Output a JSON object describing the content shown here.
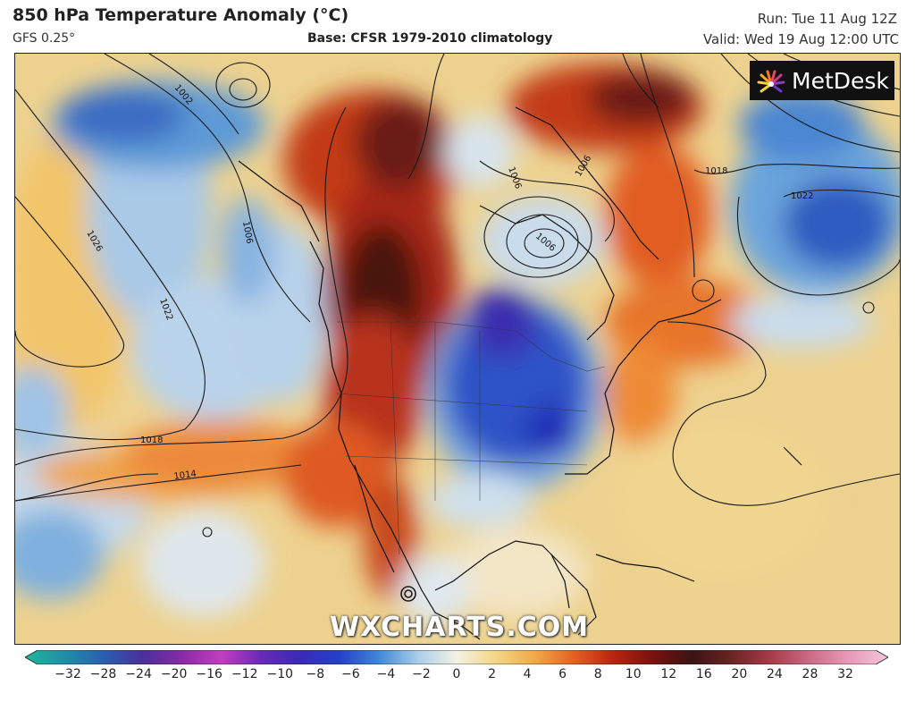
{
  "header": {
    "title": "850 hPa Temperature Anomaly (°C)",
    "model": "GFS 0.25°",
    "base": "Base: CFSR 1979-2010 climatology",
    "run": "Run: Tue 11 Aug 12Z",
    "valid": "Valid: Wed 19 Aug 12:00 UTC"
  },
  "logo": {
    "text": "MetDesk",
    "icon": "metdesk-sunburst-icon"
  },
  "watermark": "WXCHARTS.COM",
  "isobars": [
    "1002",
    "1006",
    "1018",
    "1022",
    "1026",
    "1022",
    "1018",
    "1014",
    "1006",
    "1006",
    "1006"
  ],
  "colorbar": {
    "ticks": [
      "−32",
      "−28",
      "−24",
      "−20",
      "−16",
      "−12",
      "−10",
      "−8",
      "−6",
      "−4",
      "−2",
      "0",
      "2",
      "4",
      "6",
      "8",
      "10",
      "12",
      "16",
      "20",
      "24",
      "28",
      "32"
    ],
    "colors": [
      "#1fb89a",
      "#1f8fa8",
      "#2a5fb0",
      "#4a2f9a",
      "#8a2aa8",
      "#c23ec0",
      "#6a2ab8",
      "#3a2ab8",
      "#2440c8",
      "#3e86d8",
      "#a9cde8",
      "#f4f1e4",
      "#f3d685",
      "#f2a847",
      "#e5601f",
      "#b8240f",
      "#7a1210",
      "#3a1414",
      "#6b2424",
      "#a83a4a",
      "#cc6a86",
      "#e89ab8",
      "#f5c4dc"
    ]
  },
  "palette": {
    "ocean_warm": "#eecc82",
    "cold_core": "#2a3fc0",
    "hot_core": "#5c1b12",
    "coastline": "#111111"
  }
}
